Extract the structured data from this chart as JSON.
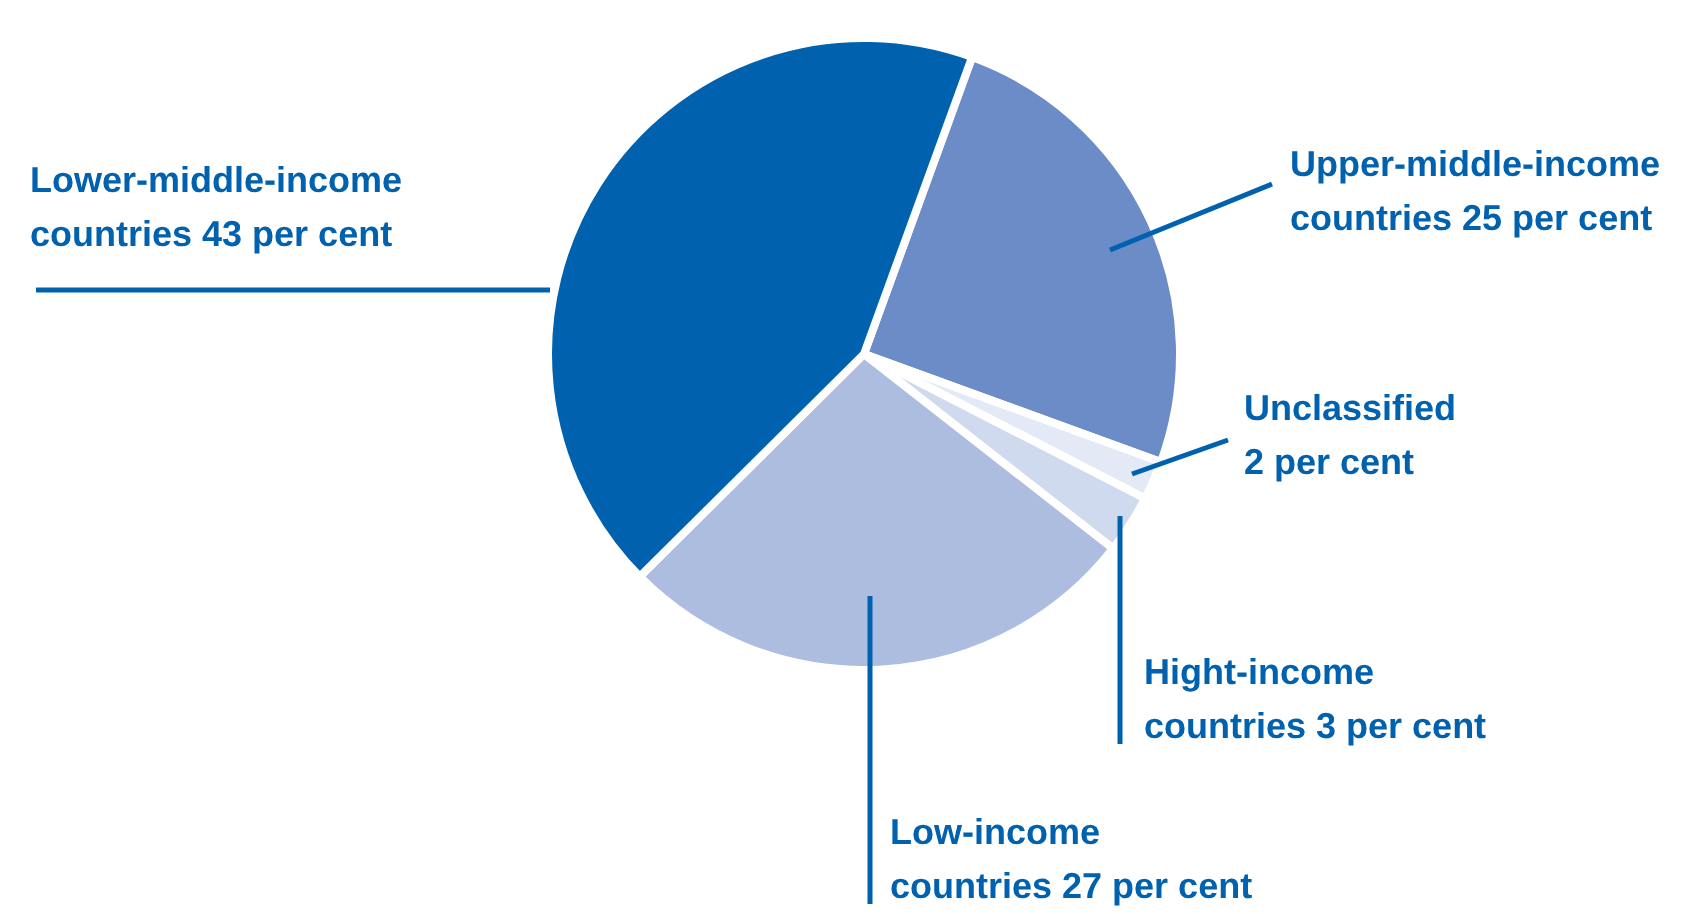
{
  "chart_data": {
    "type": "pie",
    "categories": [
      "Upper-middle-income countries",
      "Unclassified",
      "Hight-income countries",
      "Low-income countries",
      "Lower-middle-income countries"
    ],
    "values": [
      25,
      2,
      3,
      27,
      43
    ],
    "value_labels": [
      "25 per cent",
      "2 per cent",
      "3 per cent",
      "27 per cent",
      "43 per cent"
    ],
    "colors": [
      "#6b8cc7",
      "#e3eaf6",
      "#d0daef",
      "#adbde0",
      "#0062ae"
    ]
  }
}
